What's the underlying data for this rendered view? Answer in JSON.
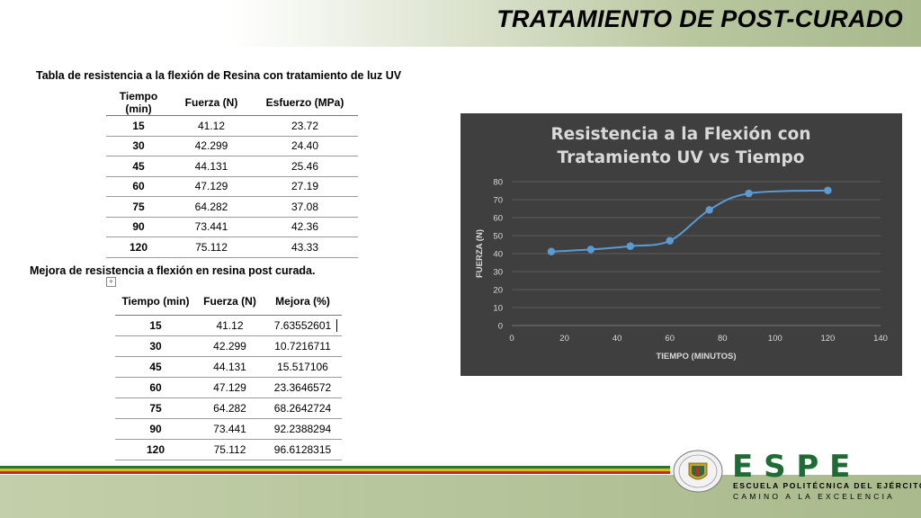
{
  "header": {
    "title": "TRATAMIENTO DE POST-CURADO"
  },
  "table1": {
    "caption": "Tabla de resistencia a la flexión de Resina con tratamiento de luz UV",
    "headers": [
      "Tiempo (min)",
      "Fuerza (N)",
      "Esfuerzo (MPa)"
    ],
    "rows": [
      [
        "15",
        "41.12",
        "23.72"
      ],
      [
        "30",
        "42.299",
        "24.40"
      ],
      [
        "45",
        "44.131",
        "25.46"
      ],
      [
        "60",
        "47.129",
        "27.19"
      ],
      [
        "75",
        "64.282",
        "37.08"
      ],
      [
        "90",
        "73.441",
        "42.36"
      ],
      [
        "120",
        "75.112",
        "43.33"
      ]
    ]
  },
  "table2": {
    "caption": "Mejora de resistencia a flexión en resina post curada.",
    "headers": [
      "Tiempo (min)",
      "Fuerza (N)",
      "Mejora (%)"
    ],
    "rows": [
      [
        "15",
        "41.12",
        "7.63552601"
      ],
      [
        "30",
        "42.299",
        "10.7216711"
      ],
      [
        "45",
        "44.131",
        "15.517106"
      ],
      [
        "60",
        "47.129",
        "23.3646572"
      ],
      [
        "75",
        "64.282",
        "68.2642724"
      ],
      [
        "90",
        "73.441",
        "92.2388294"
      ],
      [
        "120",
        "75.112",
        "96.6128315"
      ]
    ]
  },
  "chart_data": {
    "type": "scatter",
    "title": "Resistencia a la Flexión con Tratamiento UV vs Tiempo",
    "title_lines": [
      "Resistencia a la Flexión con",
      "Tratamiento UV vs Tiempo"
    ],
    "xlabel": "TIEMPO (MINUTOS)",
    "ylabel": "FUERZA (N)",
    "x": [
      15,
      30,
      45,
      60,
      75,
      90,
      120
    ],
    "y": [
      41.12,
      42.299,
      44.131,
      47.129,
      64.282,
      73.441,
      75.112
    ],
    "xlim": [
      0,
      140
    ],
    "ylim": [
      0,
      80
    ],
    "xticks": [
      0,
      20,
      40,
      60,
      80,
      100,
      120,
      140
    ],
    "yticks": [
      0,
      10,
      20,
      30,
      40,
      50,
      60,
      70,
      80
    ],
    "grid": true,
    "smooth_line": true,
    "colors": {
      "background": "#3f3f3f",
      "series": "#5b9bd5",
      "grid": "#5c5c5c",
      "text": "#d9d9d9"
    }
  },
  "footer": {
    "brand": "E S P E",
    "line1": "ESCUELA POLITÉCNICA DEL EJÉRCITO",
    "line2": "CAMINO A LA EXCELENCIA",
    "logo_icon": "espe-crest-icon"
  }
}
